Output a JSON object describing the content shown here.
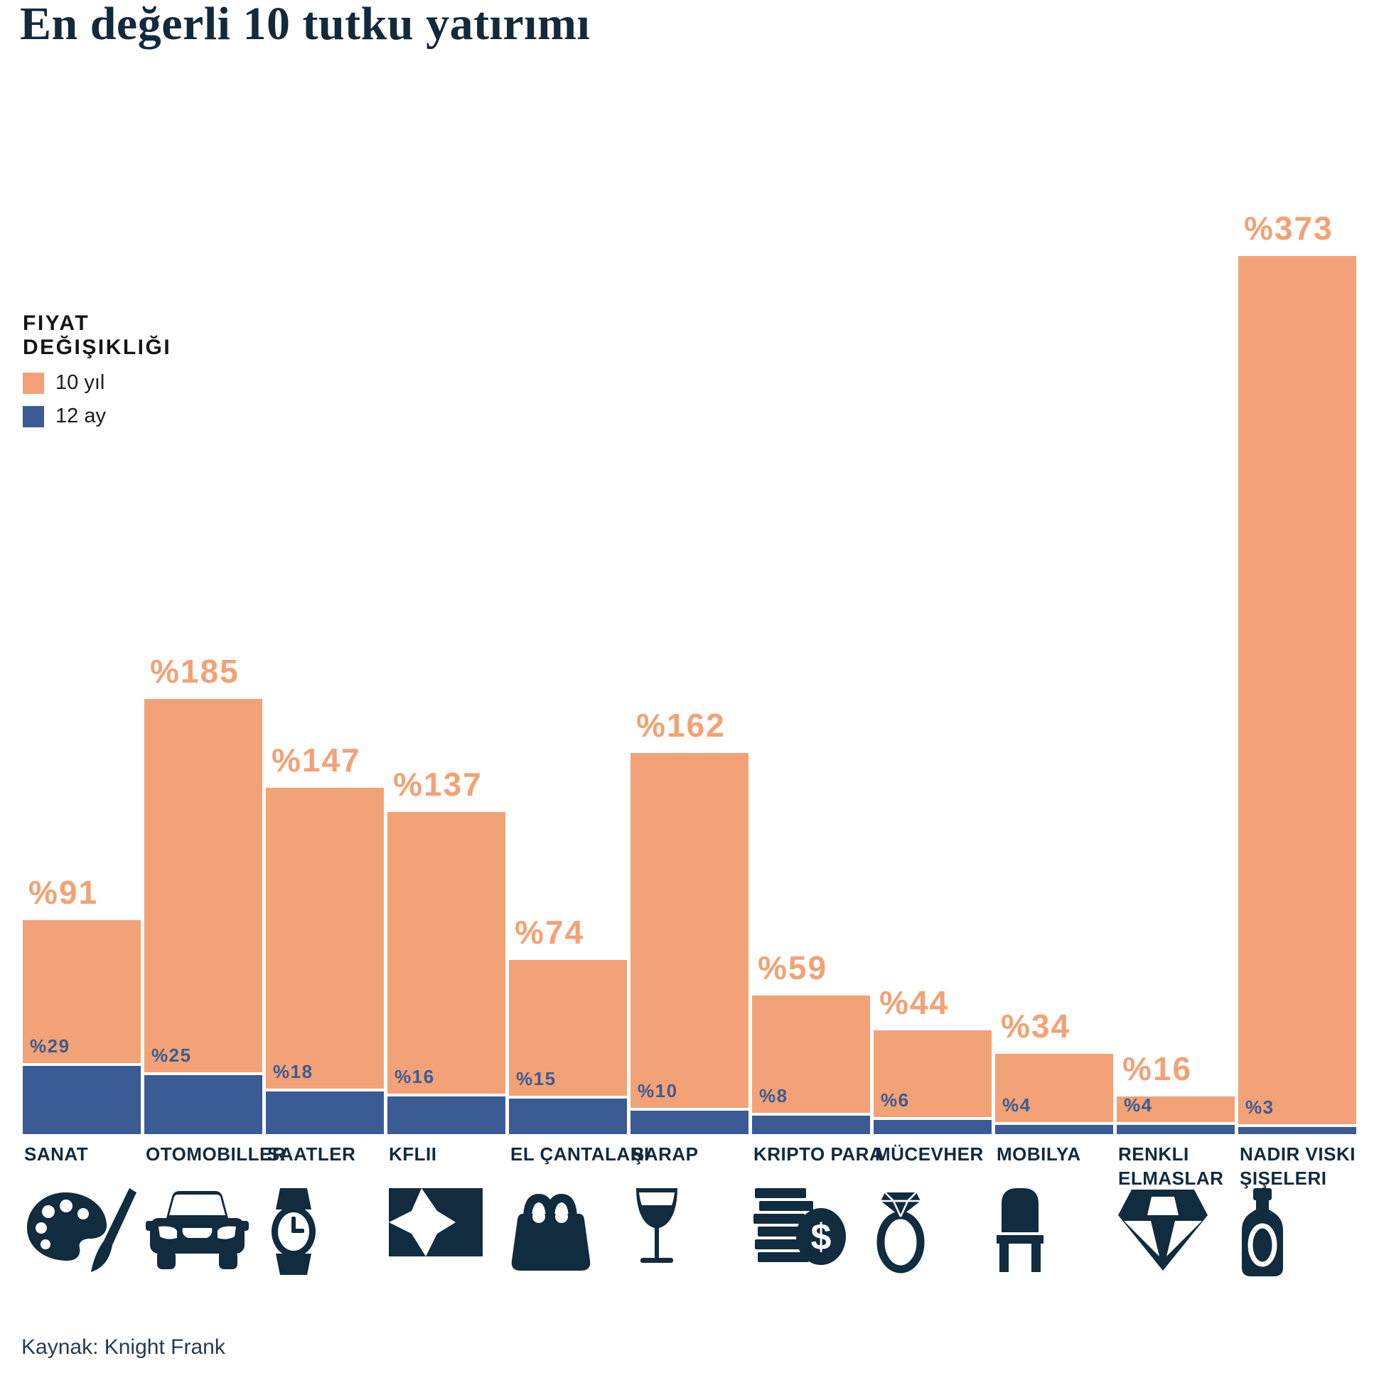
{
  "title": "En değerli 10 tutku yatırımı",
  "legend": {
    "title_line1": "FIYAT",
    "title_line2": "DEĞIŞIKLIĞI",
    "items": [
      {
        "label": "10 yıl",
        "color": "#F2A276"
      },
      {
        "label": "12 ay",
        "color": "#3B5B95"
      }
    ]
  },
  "source": "Kaynak: Knight Frank",
  "colors": {
    "bar_10yr": "#F2A276",
    "bar_12mo": "#3B5B95",
    "label_10yr": "#F2A276",
    "label_12mo": "#3B5B95",
    "navy": "#112b3f",
    "background": "#ffffff"
  },
  "chart_data": {
    "type": "bar",
    "title": "En değerli 10 tutku yatırımı",
    "value_prefix": "%",
    "categories": [
      "SANAT",
      "OTOMOBILLER",
      "SAATLER",
      "KFLII",
      "EL ÇANTALARI",
      "ŞARAP",
      "KRIPTO PARA",
      "MÜCEVHER",
      "MOBILYA",
      "RENKLI\nELMASLAR",
      "NADIR VISKI\nŞIŞELERI"
    ],
    "series": [
      {
        "name": "10 yıl",
        "color": "#F2A276",
        "values": [
          91,
          185,
          147,
          137,
          74,
          162,
          59,
          44,
          34,
          16,
          373
        ]
      },
      {
        "name": "12 ay",
        "color": "#3B5B95",
        "values": [
          29,
          25,
          18,
          16,
          15,
          10,
          8,
          6,
          4,
          4,
          3
        ]
      }
    ],
    "icons": [
      "palette-brush",
      "car",
      "wristwatch",
      "knight-frank-logo",
      "handbag",
      "wine-glass",
      "coins-dollar",
      "ring",
      "chair",
      "diamond",
      "whisky-bottle"
    ],
    "ylim": [
      0,
      400
    ],
    "grid": false,
    "legend_position": "upper-left"
  }
}
